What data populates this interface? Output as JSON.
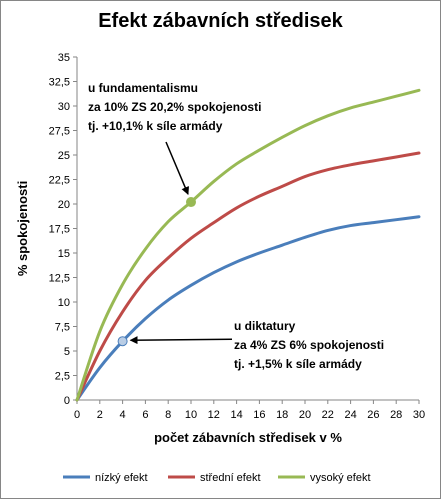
{
  "chart_data": {
    "type": "line",
    "title": "Efekt zábavních středisek",
    "xlabel": "počet zábavních středisek v %",
    "ylabel": "% spokojenosti",
    "xlim": [
      0,
      30
    ],
    "ylim": [
      0,
      35
    ],
    "x_ticks": [
      "0",
      "2",
      "4",
      "6",
      "8",
      "10",
      "12",
      "14",
      "16",
      "18",
      "20",
      "22",
      "24",
      "26",
      "28",
      "30"
    ],
    "y_ticks": [
      "0",
      "2,5",
      "5",
      "7,5",
      "10",
      "12,5",
      "15",
      "17,5",
      "20",
      "22,5",
      "25",
      "27,5",
      "30",
      "32,5",
      "35"
    ],
    "grid": false,
    "legend_position": "bottom",
    "series": [
      {
        "name": "nízký efekt",
        "color": "#4a7ebb",
        "x": [
          0,
          2,
          4,
          6,
          8,
          10,
          12,
          14,
          16,
          18,
          20,
          22,
          24,
          26,
          28,
          30
        ],
        "y": [
          0,
          3.3,
          6.0,
          8.3,
          10.2,
          11.7,
          13.0,
          14.1,
          15.0,
          15.8,
          16.6,
          17.3,
          17.8,
          18.1,
          18.4,
          18.7
        ]
      },
      {
        "name": "střední efekt",
        "color": "#be4b48",
        "x": [
          0,
          2,
          4,
          6,
          8,
          10,
          12,
          14,
          16,
          18,
          20,
          22,
          24,
          26,
          28,
          30
        ],
        "y": [
          0,
          5.0,
          9.0,
          12.2,
          14.5,
          16.5,
          18.1,
          19.6,
          20.8,
          21.8,
          22.8,
          23.5,
          24.0,
          24.4,
          24.8,
          25.2
        ]
      },
      {
        "name": "vysoký efekt",
        "color": "#98b954",
        "x": [
          0,
          2,
          4,
          6,
          8,
          10,
          12,
          14,
          16,
          18,
          20,
          22,
          24,
          26,
          28,
          30
        ],
        "y": [
          0,
          7.0,
          11.8,
          15.4,
          18.2,
          20.2,
          22.3,
          24.1,
          25.5,
          26.8,
          28.0,
          29.0,
          29.8,
          30.4,
          31.0,
          31.6
        ]
      }
    ],
    "annotations": [
      {
        "lines": [
          "u fundamentalismu",
          "za 10% ZS 20,2% spokojenosti",
          "tj. +10,1% k síle armády"
        ],
        "point": {
          "x": 10,
          "y": 20.2,
          "series": "vysoký efekt"
        }
      },
      {
        "lines": [
          "u diktatury",
          "za 4% ZS 6% spokojenosti",
          "tj. +1,5% k síle armády"
        ],
        "point": {
          "x": 4,
          "y": 6.0,
          "series": "nízký efekt"
        }
      }
    ]
  }
}
